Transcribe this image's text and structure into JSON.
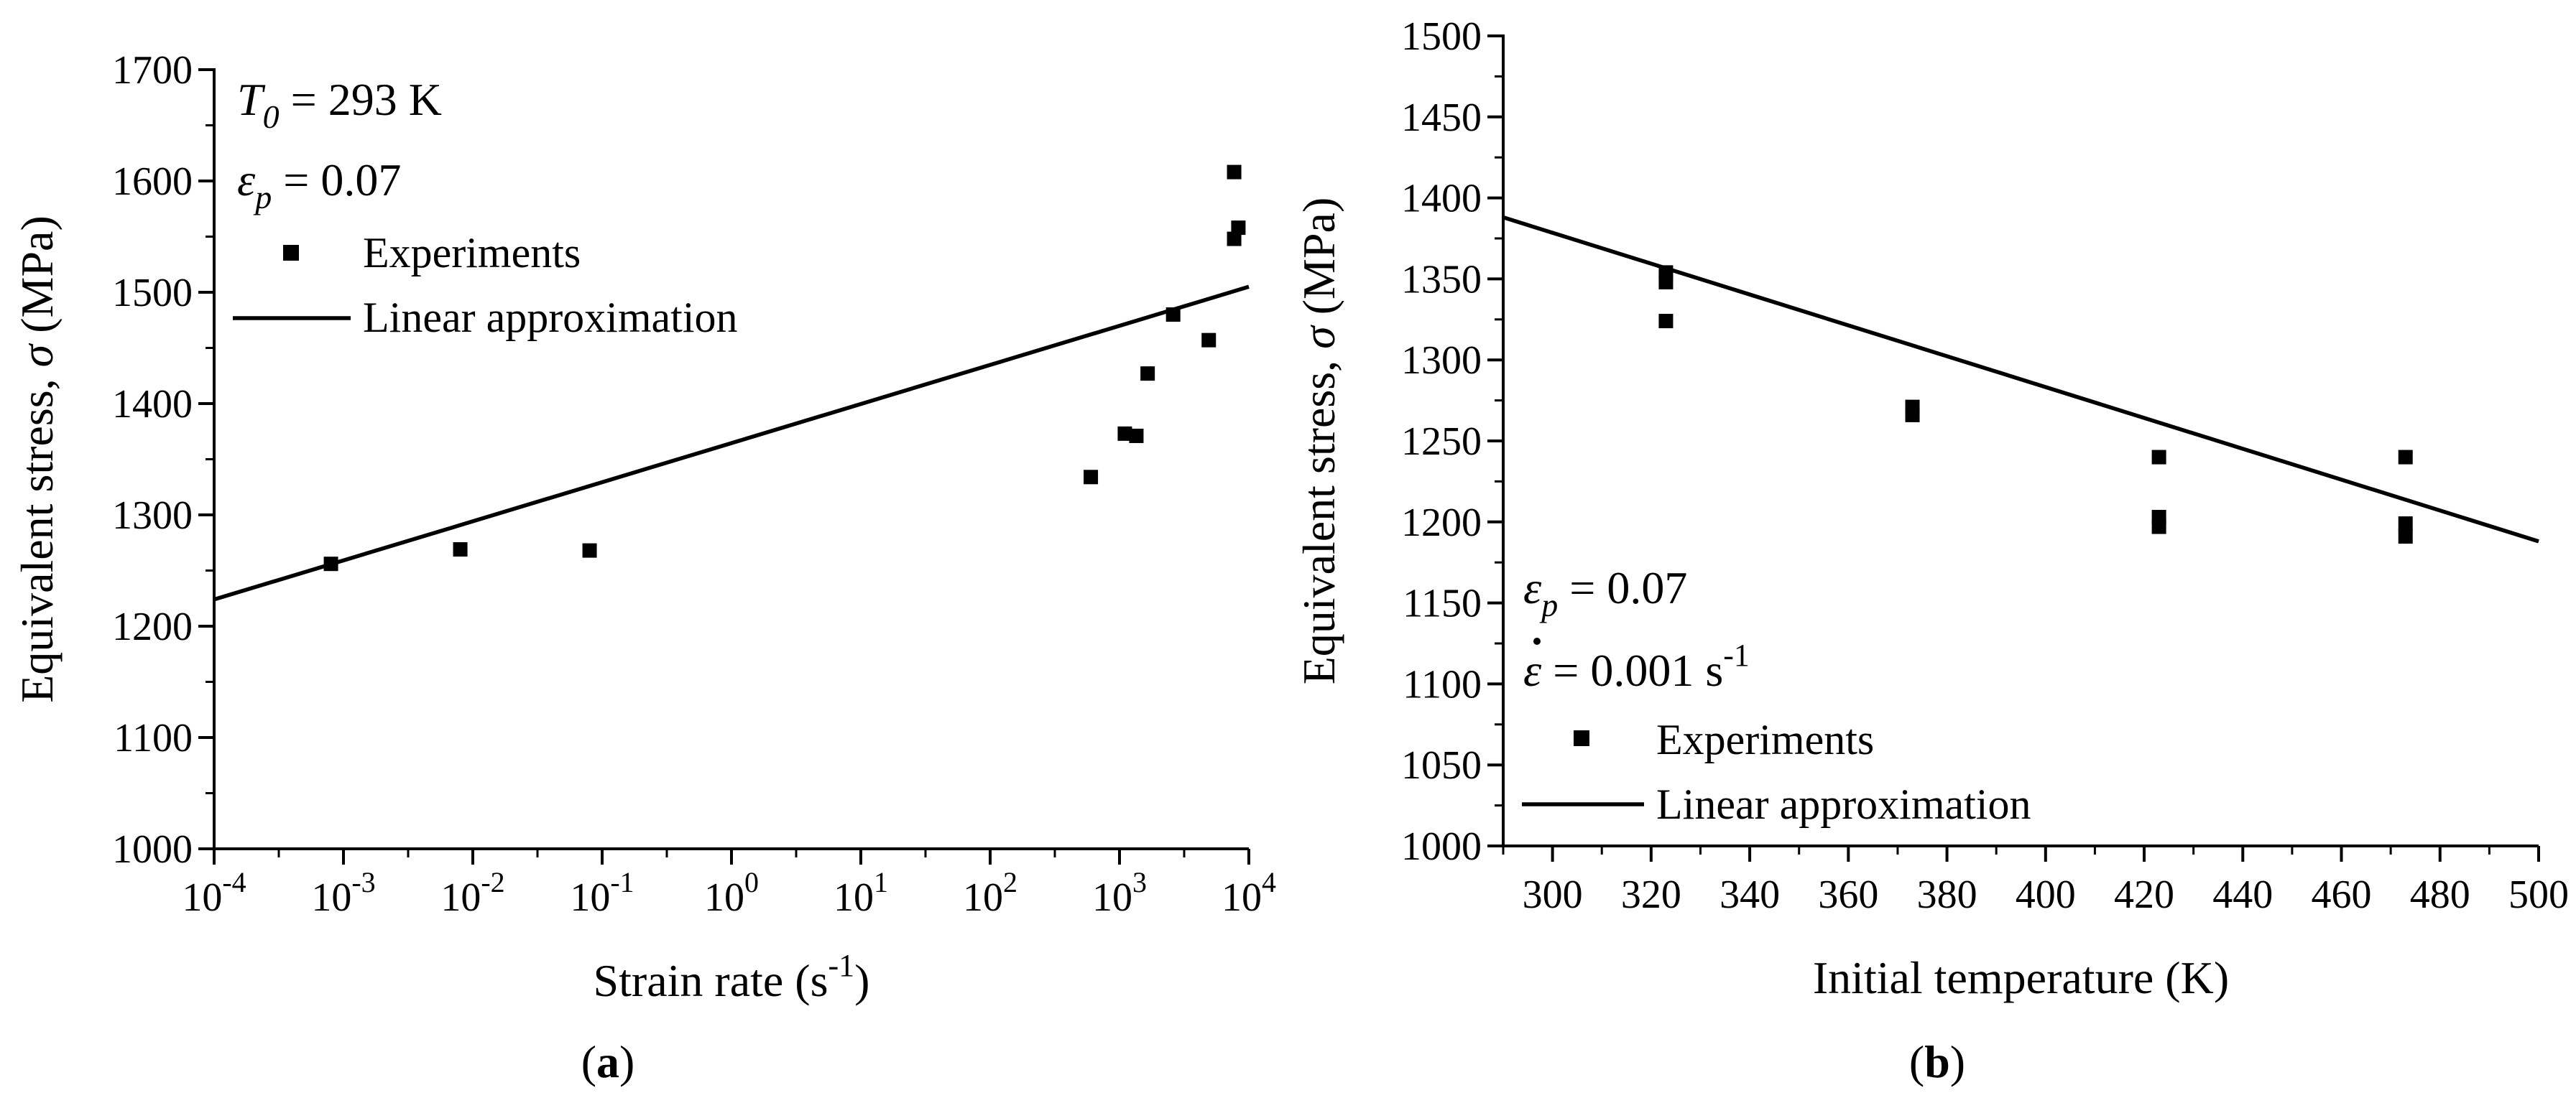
{
  "chart_data": [
    {
      "panel_label": "(a)",
      "panel_letter": "a",
      "type": "scatter",
      "xscale": "log",
      "xlabel": "Strain rate (s",
      "xlabel_sup": "-1",
      "xlabel_tail": ")",
      "ylabel": "Equivalent stress, ",
      "ylabel_symbol": "σ",
      "ylabel_unit": " (MPa)",
      "xlim": [
        0.0001,
        10000
      ],
      "ylim": [
        1000,
        1700
      ],
      "x_ticks": [
        {
          "base": "10",
          "exp": "-4",
          "value": 0.0001
        },
        {
          "base": "10",
          "exp": "-3",
          "value": 0.001
        },
        {
          "base": "10",
          "exp": "-2",
          "value": 0.01
        },
        {
          "base": "10",
          "exp": "-1",
          "value": 0.1
        },
        {
          "base": "10",
          "exp": "0",
          "value": 1
        },
        {
          "base": "10",
          "exp": "1",
          "value": 10
        },
        {
          "base": "10",
          "exp": "2",
          "value": 100
        },
        {
          "base": "10",
          "exp": "3",
          "value": 1000
        },
        {
          "base": "10",
          "exp": "4",
          "value": 10000
        }
      ],
      "y_ticks": [
        "1000",
        "1100",
        "1200",
        "1300",
        "1400",
        "1500",
        "1600",
        "1700"
      ],
      "annotations": [
        {
          "sym": "T",
          "sub": "0",
          "text": " = 293 K"
        },
        {
          "sym": "ε",
          "sub": "p",
          "text": " = 0.07"
        }
      ],
      "legend": {
        "position": "top-left",
        "experiments": "Experiments",
        "line": "Linear approximation"
      },
      "series": [
        {
          "name": "Experiments",
          "marker": "square",
          "points": [
            [
              0.0008,
              1256
            ],
            [
              0.008,
              1269
            ],
            [
              0.08,
              1268
            ],
            [
              600,
              1334
            ],
            [
              1100,
              1373
            ],
            [
              1350,
              1371
            ],
            [
              1650,
              1427
            ],
            [
              2600,
              1480
            ],
            [
              4900,
              1457
            ],
            [
              7700,
              1608
            ],
            [
              7700,
              1548
            ],
            [
              8300,
              1558
            ]
          ]
        },
        {
          "name": "Linear approximation",
          "type": "line",
          "points": [
            [
              0.0001,
              1224
            ],
            [
              10000,
              1505
            ]
          ]
        }
      ]
    },
    {
      "panel_label": "(b)",
      "panel_letter": "b",
      "type": "scatter",
      "xscale": "linear",
      "xlabel": "Initial temperature (K)",
      "ylabel": "Equivalent stress, ",
      "ylabel_symbol": "σ",
      "ylabel_unit": " (MPa)",
      "xlim": [
        290,
        500
      ],
      "ylim": [
        1000,
        1500
      ],
      "x_ticks": [
        "300",
        "320",
        "340",
        "360",
        "380",
        "400",
        "420",
        "440",
        "460",
        "480",
        "500"
      ],
      "y_ticks": [
        "1000",
        "1050",
        "1100",
        "1150",
        "1200",
        "1250",
        "1300",
        "1350",
        "1400",
        "1450",
        "1500"
      ],
      "annotations": [
        {
          "sym": "ε",
          "sub": "p",
          "text": " = 0.07"
        },
        {
          "sym": "ε",
          "dot": true,
          "text": " = 0.001 s",
          "sup": "-1"
        }
      ],
      "legend": {
        "position": "bottom-left",
        "experiments": "Experiments",
        "line": "Linear approximation"
      },
      "series": [
        {
          "name": "Experiments",
          "marker": "square",
          "points": [
            [
              323,
              1354
            ],
            [
              323,
              1348
            ],
            [
              323,
              1324
            ],
            [
              373,
              1271
            ],
            [
              373,
              1266
            ],
            [
              423,
              1240
            ],
            [
              423,
              1203
            ],
            [
              423,
              1197
            ],
            [
              473,
              1240
            ],
            [
              473,
              1199
            ],
            [
              473,
              1191
            ]
          ]
        },
        {
          "name": "Linear approximation",
          "type": "line",
          "points": [
            [
              290,
              1388
            ],
            [
              500,
              1188
            ]
          ]
        }
      ]
    }
  ]
}
